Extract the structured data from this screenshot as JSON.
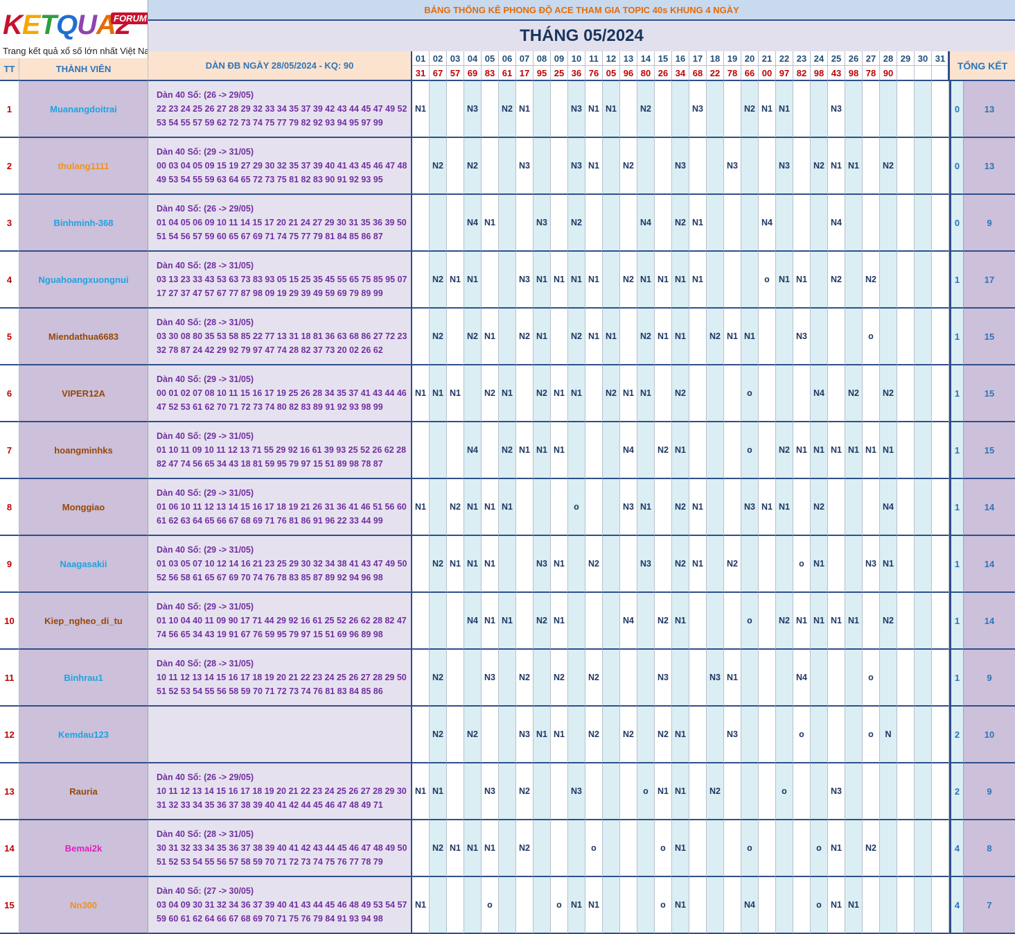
{
  "logo": {
    "brand": "KETQUA2",
    "forum": "FORUM",
    "tagline": "Trang kết quả xổ số lớn nhất Việt Nam"
  },
  "banner": "BẢNG THỐNG KÊ PHONG ĐỘ ACE THAM GIA TOPIC 40s KHUNG 4 NGÀY",
  "month": "THÁNG 05/2024",
  "headers": {
    "tt": "TT",
    "member": "THÀNH VIÊN",
    "dan": "DÀN ĐB NGÀY 28/05/2024 - KQ: 90",
    "total": "TỔNG KẾT"
  },
  "days": [
    "01",
    "02",
    "03",
    "04",
    "05",
    "06",
    "07",
    "08",
    "09",
    "10",
    "11",
    "12",
    "13",
    "14",
    "15",
    "16",
    "17",
    "18",
    "19",
    "20",
    "21",
    "22",
    "23",
    "24",
    "25",
    "26",
    "27",
    "28",
    "29",
    "30",
    "31"
  ],
  "results": [
    "31",
    "67",
    "57",
    "69",
    "83",
    "61",
    "17",
    "95",
    "25",
    "36",
    "76",
    "05",
    "96",
    "80",
    "26",
    "34",
    "68",
    "22",
    "78",
    "66",
    "00",
    "97",
    "82",
    "98",
    "43",
    "98",
    "78",
    "90",
    "",
    "",
    ""
  ],
  "colors": {
    "blue": "#1fa2e0",
    "orange": "#f0901e",
    "brown": "#974706",
    "pink": "#e020c0"
  },
  "rows": [
    {
      "tt": "1",
      "name": "Muanangdoitrai",
      "color": "blue",
      "dan": [
        "Dàn 40 Số: (26 -> 29/05)",
        "22 23 24 25 26 27 28 29 32 33 34 35 37 39 42 43 44 45 47 49 52",
        "53 54 55 57 59 62 72 73 74 75 77 79 82 92 93 94 95 97 99"
      ],
      "marks": [
        "N1",
        "",
        "",
        "N3",
        "",
        "N2",
        "N1",
        "",
        "",
        "N3",
        "N1",
        "N1",
        "",
        "N2",
        "",
        "",
        "N3",
        "",
        "",
        "N2",
        "N1",
        "N1",
        "",
        "",
        "N3",
        "",
        "",
        "",
        "",
        "",
        ""
      ],
      "miss": "0",
      "total": "13"
    },
    {
      "tt": "2",
      "name": "thulang1111",
      "color": "orange",
      "dan": [
        "Dàn 40 Số: (29 -> 31/05)",
        "00 03 04 05 09 15 19 27 29 30 32 35 37 39 40 41 43 45 46 47 48",
        "49 53 54 55 59 63 64 65 72 73 75 81 82 83 90 91 92 93 95"
      ],
      "marks": [
        "",
        "N2",
        "",
        "N2",
        "",
        "",
        "N3",
        "",
        "",
        "N3",
        "N1",
        "",
        "N2",
        "",
        "",
        "N3",
        "",
        "",
        "N3",
        "",
        "",
        "N3",
        "",
        "N2",
        "N1",
        "N1",
        "",
        "N2",
        "",
        "",
        ""
      ],
      "miss": "0",
      "total": "13"
    },
    {
      "tt": "3",
      "name": "Binhminh-368",
      "color": "blue",
      "dan": [
        "Dàn 40 Số: (26 -> 29/05)",
        "01 04 05 06 09 10 11 14 15 17 20 21 24 27 29 30 31 35 36 39 50",
        "51 54 56 57 59 60 65 67 69 71 74 75 77 79 81 84 85 86 87"
      ],
      "marks": [
        "",
        "",
        "",
        "N4",
        "N1",
        "",
        "",
        "N3",
        "",
        "N2",
        "",
        "",
        "",
        "N4",
        "",
        "N2",
        "N1",
        "",
        "",
        "",
        "N4",
        "",
        "",
        "",
        "N4",
        "",
        "",
        "",
        "",
        "",
        ""
      ],
      "miss": "0",
      "total": "9"
    },
    {
      "tt": "4",
      "name": "Nguahoangxuongnui",
      "color": "blue",
      "dan": [
        "Dàn 40 Số: (28 -> 31/05)",
        "03 13 23 33 43 53 63 73 83 93 05 15 25 35 45 55 65 75 85 95 07",
        "17 27 37 47 57 67 77 87 98 09 19 29 39 49 59 69 79 89 99"
      ],
      "marks": [
        "",
        "N2",
        "N1",
        "N1",
        "",
        "",
        "N3",
        "N1",
        "N1",
        "N1",
        "N1",
        "",
        "N2",
        "N1",
        "N1",
        "N1",
        "N1",
        "",
        "",
        "",
        "o",
        "N1",
        "N1",
        "",
        "N2",
        "",
        "N2",
        "",
        "",
        "",
        ""
      ],
      "miss": "1",
      "total": "17"
    },
    {
      "tt": "5",
      "name": "Miendathua6683",
      "color": "brown",
      "dan": [
        "Dàn 40 Số: (28 -> 31/05)",
        "03 30 08 80 35 53 58 85 22 77 13 31 18 81 36 63 68 86 27 72 23",
        "32 78 87 24 42 29 92 79 97 47 74 28 82 37 73 20 02 26 62"
      ],
      "marks": [
        "",
        "N2",
        "",
        "N2",
        "N1",
        "",
        "N2",
        "N1",
        "",
        "N2",
        "N1",
        "N1",
        "",
        "N2",
        "N1",
        "N1",
        "",
        "N2",
        "N1",
        "N1",
        "",
        "",
        "N3",
        "",
        "",
        "",
        "o",
        "",
        "",
        "",
        ""
      ],
      "miss": "1",
      "total": "15"
    },
    {
      "tt": "6",
      "name": "VIPER12A",
      "color": "brown",
      "dan": [
        "Dàn 40 Số: (29 -> 31/05)",
        "00 01 02 07 08 10 11 15 16 17 19 25 26 28 34 35 37 41 43 44 46",
        "47 52 53 61 62 70 71 72 73 74 80 82 83 89 91 92 93 98 99"
      ],
      "marks": [
        "N1",
        "N1",
        "N1",
        "",
        "N2",
        "N1",
        "",
        "N2",
        "N1",
        "N1",
        "",
        "N2",
        "N1",
        "N1",
        "",
        "N2",
        "",
        "",
        "",
        "o",
        "",
        "",
        "",
        "N4",
        "",
        "N2",
        "",
        "N2",
        "",
        "",
        ""
      ],
      "miss": "1",
      "total": "15"
    },
    {
      "tt": "7",
      "name": "hoangminhks",
      "color": "brown",
      "dan": [
        "Dàn 40 Số: (29 -> 31/05)",
        "01 10 11 09 10 11 12 13 71 55 29 92 16 61 39 93 25 52 26 62 28",
        "82 47 74 56 65 34 43 18 81 59 95 79 97 15 51 89 98 78 87"
      ],
      "marks": [
        "",
        "",
        "",
        "N4",
        "",
        "N2",
        "N1",
        "N1",
        "N1",
        "",
        "",
        "",
        "N4",
        "",
        "N2",
        "N1",
        "",
        "",
        "",
        "o",
        "",
        "N2",
        "N1",
        "N1",
        "N1",
        "N1",
        "N1",
        "N1",
        "",
        "",
        ""
      ],
      "miss": "1",
      "total": "15"
    },
    {
      "tt": "8",
      "name": "Monggiao",
      "color": "brown",
      "dan": [
        "Dàn 40 Số: (29 -> 31/05)",
        "01 06 10 11 12 13 14 15 16 17 18 19 21 26 31 36 41 46 51 56 60",
        "61 62 63 64 65 66 67 68 69 71 76 81 86 91 96 22 33 44 99"
      ],
      "marks": [
        "N1",
        "",
        "N2",
        "N1",
        "N1",
        "N1",
        "",
        "",
        "",
        "o",
        "",
        "",
        "N3",
        "N1",
        "",
        "N2",
        "N1",
        "",
        "",
        "N3",
        "N1",
        "N1",
        "",
        "N2",
        "",
        "",
        "",
        "N4",
        "",
        "",
        ""
      ],
      "miss": "1",
      "total": "14"
    },
    {
      "tt": "9",
      "name": "Naagasakii",
      "color": "blue",
      "dan": [
        "Dàn 40 Số: (29 -> 31/05)",
        "01 03 05 07 10 12 14 16 21 23 25 29 30 32 34 38 41 43 47 49 50",
        "52 56 58 61 65 67 69 70 74 76 78 83 85 87 89 92 94 96 98"
      ],
      "marks": [
        "",
        "N2",
        "N1",
        "N1",
        "N1",
        "",
        "",
        "N3",
        "N1",
        "",
        "N2",
        "",
        "",
        "N3",
        "",
        "N2",
        "N1",
        "",
        "N2",
        "",
        "",
        "",
        "o",
        "N1",
        "",
        "",
        "N3",
        "N1",
        "",
        "",
        ""
      ],
      "miss": "1",
      "total": "14"
    },
    {
      "tt": "10",
      "name": "Kiep_ngheo_di_tu",
      "color": "brown",
      "dan": [
        "Dàn 40 Số: (29 -> 31/05)",
        "01 10 04 40 11 09 90 17 71 44 29 92 16 61 25 52 26 62 28 82 47",
        "74 56 65 34 43 19 91 67 76 59 95 79 97 15 51 69 96 89 98"
      ],
      "marks": [
        "",
        "",
        "",
        "N4",
        "N1",
        "N1",
        "",
        "N2",
        "N1",
        "",
        "",
        "",
        "N4",
        "",
        "N2",
        "N1",
        "",
        "",
        "",
        "o",
        "",
        "N2",
        "N1",
        "N1",
        "N1",
        "N1",
        "",
        "N2",
        "",
        "",
        ""
      ],
      "miss": "1",
      "total": "14"
    },
    {
      "tt": "11",
      "name": "Binhrau1",
      "color": "blue",
      "dan": [
        "Dàn 40 Số: (28 -> 31/05)",
        "10 11 12 13 14 15 16 17 18 19 20 21 22 23 24 25 26 27 28 29 50",
        "51 52 53 54 55 56 58 59 70 71 72 73 74 76 81 83 84 85 86"
      ],
      "marks": [
        "",
        "N2",
        "",
        "",
        "N3",
        "",
        "N2",
        "",
        "N2",
        "",
        "N2",
        "",
        "",
        "",
        "N3",
        "",
        "",
        "N3",
        "N1",
        "",
        "",
        "",
        "N4",
        "",
        "",
        "",
        "o",
        "",
        "",
        "",
        ""
      ],
      "miss": "1",
      "total": "9"
    },
    {
      "tt": "12",
      "name": "Kemdau123",
      "color": "blue",
      "dan": [
        "",
        "",
        ""
      ],
      "marks": [
        "",
        "N2",
        "",
        "N2",
        "",
        "",
        "N3",
        "N1",
        "N1",
        "",
        "N2",
        "",
        "N2",
        "",
        "N2",
        "N1",
        "",
        "",
        "N3",
        "",
        "",
        "",
        "o",
        "",
        "",
        "",
        "o",
        "N",
        "",
        "",
        ""
      ],
      "miss": "2",
      "total": "10"
    },
    {
      "tt": "13",
      "name": "Rauria",
      "color": "brown",
      "dan": [
        "Dàn 40 Số: (26 -> 29/05)",
        "10 11 12 13 14 15 16 17 18 19 20 21 22 23 24 25 26 27 28 29 30",
        "31 32 33 34 35 36 37 38 39 40 41 42 44 45 46 47 48 49 71"
      ],
      "marks": [
        "N1",
        "N1",
        "",
        "",
        "N3",
        "",
        "N2",
        "",
        "",
        "N3",
        "",
        "",
        "",
        "o",
        "N1",
        "N1",
        "",
        "N2",
        "",
        "",
        "",
        "o",
        "",
        "",
        "N3",
        "",
        "",
        "",
        "",
        "",
        ""
      ],
      "miss": "2",
      "total": "9"
    },
    {
      "tt": "14",
      "name": "Bemai2k",
      "color": "pink",
      "dan": [
        "Dàn 40 Số: (28 -> 31/05)",
        "30 31 32 33 34 35 36 37 38 39 40 41 42 43 44 45 46 47 48 49 50",
        "51 52 53 54 55 56 57 58 59 70 71 72 73 74 75 76 77 78 79"
      ],
      "marks": [
        "",
        "N2",
        "N1",
        "N1",
        "N1",
        "",
        "N2",
        "",
        "",
        "",
        "o",
        "",
        "",
        "",
        "o",
        "N1",
        "",
        "",
        "",
        "o",
        "",
        "",
        "",
        "o",
        "N1",
        "",
        "N2",
        "",
        "",
        "",
        ""
      ],
      "miss": "4",
      "total": "8"
    },
    {
      "tt": "15",
      "name": "Nn300",
      "color": "orange",
      "dan": [
        "Dàn 40 Số: (27 -> 30/05)",
        "03 04 09 30 31 32 34 36 37 39 40 41 43 44 45 46 48 49 53 54 57",
        "59 60 61 62 64 66 67 68 69 70 71 75 76 79 84 91 93 94 98"
      ],
      "marks": [
        "N1",
        "",
        "",
        "",
        "o",
        "",
        "",
        "",
        "o",
        "N1",
        "N1",
        "",
        "",
        "",
        "o",
        "N1",
        "",
        "",
        "",
        "N4",
        "",
        "",
        "",
        "o",
        "N1",
        "N1",
        "",
        "",
        "",
        "",
        ""
      ],
      "miss": "4",
      "total": "7"
    }
  ]
}
